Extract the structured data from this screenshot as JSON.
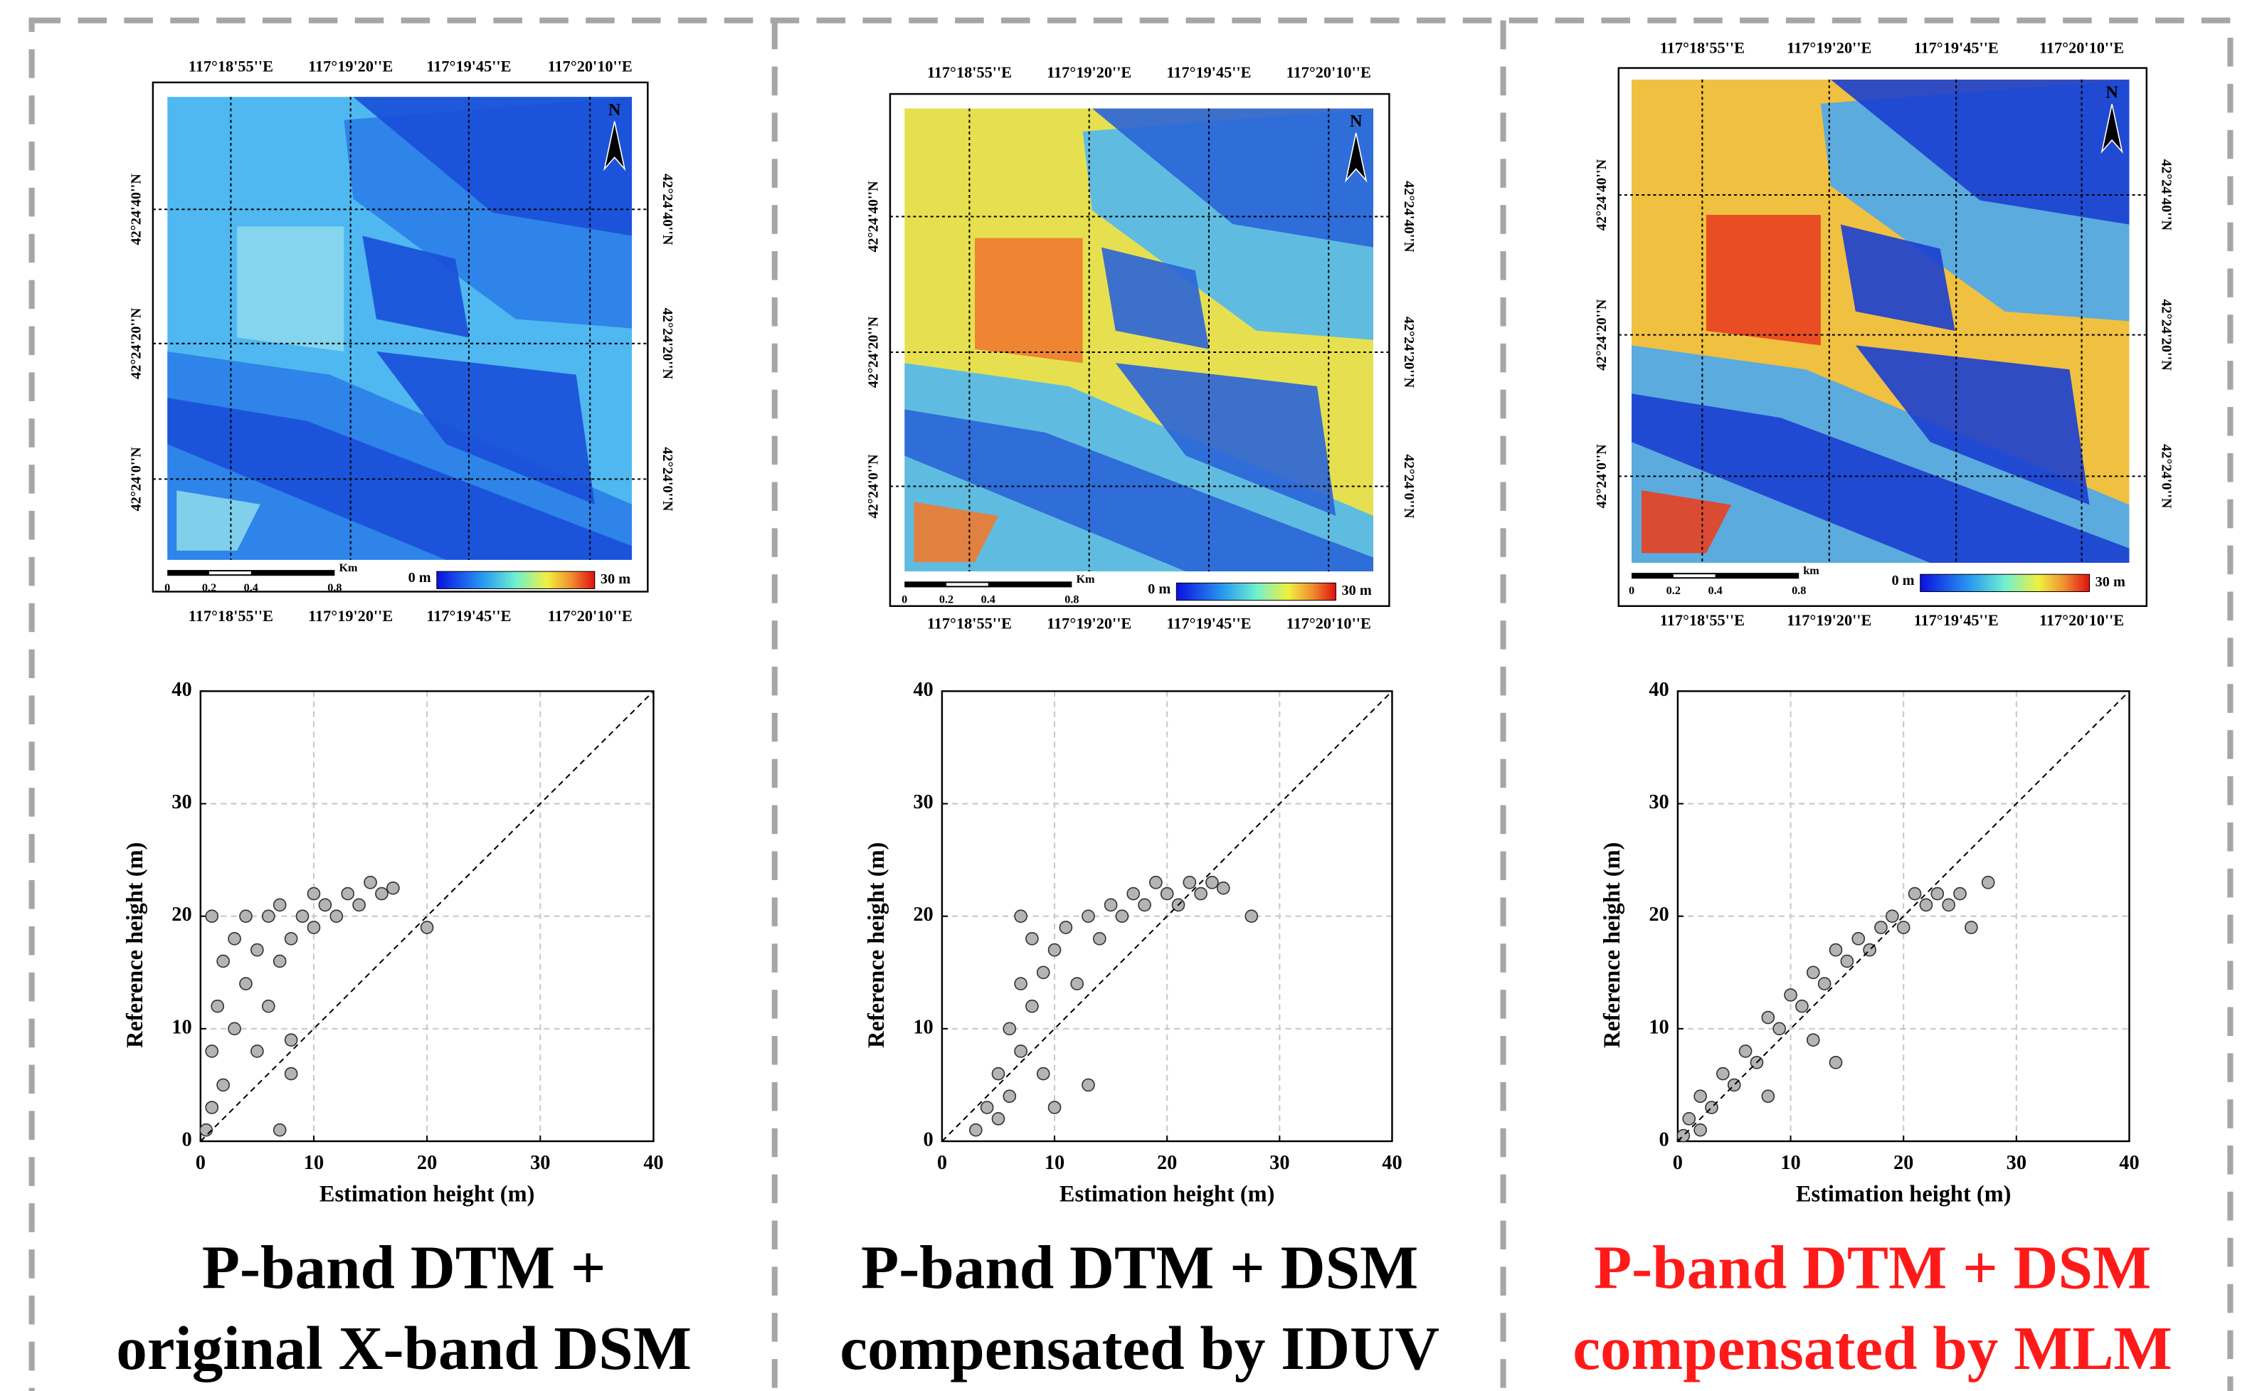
{
  "maps": [
    {
      "lon_labels": [
        "117°18'55''E",
        "117°19'20''E",
        "117°19'45''E",
        "117°20'10''E"
      ],
      "lat_labels": [
        "42°24'40''N",
        "42°24'20''N",
        "42°24'0''N"
      ],
      "scale_labels": [
        "0",
        "0.2",
        "0.4",
        "0.8"
      ],
      "scale_unit": "Km",
      "legend_min": "0 m",
      "legend_max": "30 m",
      "north": "N"
    },
    {
      "lon_labels": [
        "117°18'55''E",
        "117°19'20''E",
        "117°19'45''E",
        "117°20'10''E"
      ],
      "lat_labels": [
        "42°24'40''N",
        "42°24'20''N",
        "42°24'0''N"
      ],
      "scale_labels": [
        "0",
        "0.2",
        "0.4",
        "0.8"
      ],
      "scale_unit": "Km",
      "legend_min": "0 m",
      "legend_max": "30 m",
      "north": "N"
    },
    {
      "lon_labels": [
        "117°18'55''E",
        "117°19'20''E",
        "117°19'45''E",
        "117°20'10''E"
      ],
      "lat_labels": [
        "42°24'40''N",
        "42°24'20''N",
        "42°24'0''N"
      ],
      "scale_labels": [
        "0",
        "0.2",
        "0.4",
        "0.8"
      ],
      "scale_unit": "km",
      "legend_min": "0 m",
      "legend_max": "30 m",
      "north": "N"
    }
  ],
  "chart_data": [
    {
      "type": "scatter",
      "xlabel": "Estimation height (m)",
      "ylabel": "Reference height (m)",
      "xlim": [
        0,
        40
      ],
      "ylim": [
        0,
        40
      ],
      "xticks": [
        0,
        10,
        20,
        30,
        40
      ],
      "yticks": [
        0,
        10,
        20,
        30,
        40
      ],
      "grid": true,
      "diagonal": true,
      "color": "#b4b4b4",
      "x": [
        0.5,
        1,
        1,
        1.5,
        2,
        2,
        3,
        3,
        4,
        4,
        5,
        5,
        6,
        6,
        7,
        7,
        8,
        8,
        9,
        10,
        10,
        11,
        12,
        13,
        14,
        15,
        16,
        17,
        20,
        1,
        8,
        7
      ],
      "y": [
        1,
        3,
        8,
        12,
        5,
        16,
        10,
        18,
        14,
        20,
        8,
        17,
        12,
        20,
        16,
        21,
        18,
        9,
        20,
        19,
        22,
        21,
        20,
        22,
        21,
        23,
        22,
        22.5,
        19,
        20,
        6,
        1
      ],
      "caption": [
        "P-band DTM +",
        "original X-band DSM"
      ],
      "caption_color": "#000000"
    },
    {
      "type": "scatter",
      "xlabel": "Estimation height (m)",
      "ylabel": "Reference height (m)",
      "xlim": [
        0,
        40
      ],
      "ylim": [
        0,
        40
      ],
      "xticks": [
        0,
        10,
        20,
        30,
        40
      ],
      "yticks": [
        0,
        10,
        20,
        30,
        40
      ],
      "grid": true,
      "diagonal": true,
      "color": "#b4b4b4",
      "x": [
        3,
        4,
        5,
        5,
        6,
        6,
        7,
        7,
        8,
        8,
        9,
        9,
        10,
        11,
        12,
        13,
        14,
        15,
        16,
        17,
        18,
        19,
        20,
        21,
        22,
        23,
        24,
        25,
        27.5,
        7,
        10,
        13
      ],
      "y": [
        1,
        3,
        2,
        6,
        10,
        4,
        14,
        8,
        12,
        18,
        15,
        6,
        17,
        19,
        14,
        20,
        18,
        21,
        20,
        22,
        21,
        23,
        22,
        21,
        23,
        22,
        23,
        22.5,
        20,
        20,
        3,
        5
      ],
      "caption": [
        "P-band DTM + DSM",
        "compensated by IDUV"
      ],
      "caption_color": "#000000"
    },
    {
      "type": "scatter",
      "xlabel": "Estimation height (m)",
      "ylabel": "Reference height (m)",
      "xlim": [
        0,
        40
      ],
      "ylim": [
        0,
        40
      ],
      "xticks": [
        0,
        10,
        20,
        30,
        40
      ],
      "yticks": [
        0,
        10,
        20,
        30,
        40
      ],
      "grid": true,
      "diagonal": true,
      "color": "#b4b4b4",
      "x": [
        0.5,
        1,
        2,
        2,
        3,
        4,
        5,
        6,
        7,
        8,
        8,
        9,
        10,
        11,
        12,
        12,
        13,
        14,
        15,
        16,
        17,
        18,
        19,
        20,
        21,
        22,
        23,
        24,
        25,
        26,
        27.5,
        14
      ],
      "y": [
        0.5,
        2,
        1,
        4,
        3,
        6,
        5,
        8,
        7,
        11,
        4,
        10,
        13,
        12,
        15,
        9,
        14,
        17,
        16,
        18,
        17,
        19,
        20,
        19,
        22,
        21,
        22,
        21,
        22,
        19,
        23,
        7
      ],
      "caption": [
        "P-band DTM + DSM",
        "compensated by MLM"
      ],
      "caption_color": "#ff1a1a"
    }
  ]
}
